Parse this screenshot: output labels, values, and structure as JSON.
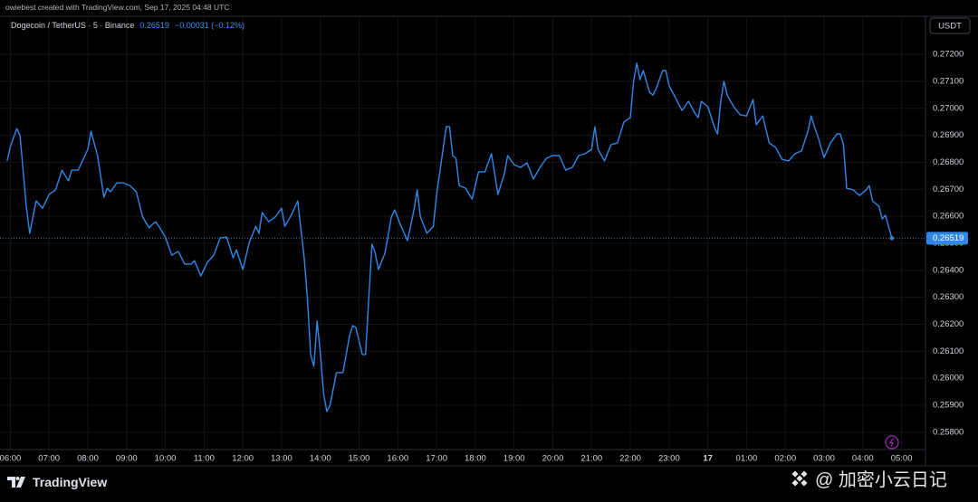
{
  "header": {
    "credit": "owiebest created with TradingView.com, Sep 17, 2025 04:48 UTC"
  },
  "chart_data": {
    "type": "line",
    "symbol": "Dogecoin / TetherUS · 5 · Binance",
    "last_price": 0.26519,
    "change": "−0.00031 (−0.12%)",
    "currency": "USDT",
    "color": "#2f88e8",
    "grid": true,
    "x": [
      355,
      360,
      370,
      375,
      385,
      390,
      400,
      410,
      420,
      430,
      440,
      450,
      455,
      465,
      480,
      485,
      495,
      505,
      510,
      515,
      525,
      535,
      545,
      555,
      565,
      575,
      580,
      585,
      590,
      600,
      610,
      620,
      630,
      640,
      645,
      655,
      665,
      675,
      685,
      695,
      705,
      710,
      720,
      730,
      740,
      745,
      750,
      760,
      770,
      780,
      785,
      795,
      805,
      815,
      820,
      825,
      830,
      835,
      840,
      845,
      850,
      855,
      865,
      875,
      885,
      890,
      895,
      905,
      910,
      915,
      920,
      925,
      930,
      940,
      950,
      955,
      965,
      975,
      985,
      990,
      995,
      1005,
      1015,
      1020,
      1030,
      1035,
      1040,
      1045,
      1050,
      1055,
      1065,
      1075,
      1085,
      1095,
      1105,
      1115,
      1125,
      1130,
      1140,
      1150,
      1160,
      1170,
      1180,
      1190,
      1200,
      1210,
      1220,
      1230,
      1240,
      1250,
      1260,
      1265,
      1270,
      1280,
      1290,
      1300,
      1310,
      1320,
      1325,
      1330,
      1335,
      1340,
      1350,
      1355,
      1360,
      1370,
      1375,
      1380,
      1390,
      1400,
      1410,
      1420,
      1425,
      1430,
      1440,
      1450,
      1455,
      1460,
      1465,
      1470,
      1480,
      1490,
      1500,
      1510,
      1515,
      1525,
      1535,
      1545,
      1555,
      1565,
      1575,
      1585,
      1595,
      1600,
      1605,
      1610,
      1620,
      1630,
      1640,
      1645,
      1650,
      1655,
      1665,
      1675,
      1685,
      1690,
      1695,
      1705,
      1710,
      1715,
      1725
    ],
    "values": [
      0.26805,
      0.26858,
      0.26925,
      0.26899,
      0.2663,
      0.26537,
      0.26657,
      0.2663,
      0.26681,
      0.26698,
      0.26771,
      0.26731,
      0.26771,
      0.26771,
      0.26848,
      0.26915,
      0.26825,
      0.26671,
      0.26704,
      0.26691,
      0.26724,
      0.26724,
      0.26714,
      0.26691,
      0.26597,
      0.26557,
      0.2657,
      0.2658,
      0.26563,
      0.26523,
      0.26456,
      0.2647,
      0.26423,
      0.26423,
      0.26436,
      0.26379,
      0.26429,
      0.26456,
      0.2652,
      0.26523,
      0.26446,
      0.26476,
      0.26403,
      0.26503,
      0.26563,
      0.26537,
      0.26614,
      0.2658,
      0.26597,
      0.2663,
      0.26563,
      0.26604,
      0.26657,
      0.26446,
      0.26296,
      0.26088,
      0.26044,
      0.26212,
      0.26094,
      0.25944,
      0.25877,
      0.259,
      0.26021,
      0.26021,
      0.26155,
      0.26195,
      0.26188,
      0.26088,
      0.26088,
      0.26296,
      0.26497,
      0.26463,
      0.26403,
      0.26463,
      0.26597,
      0.26624,
      0.26563,
      0.2651,
      0.26624,
      0.26698,
      0.26597,
      0.26537,
      0.26563,
      0.26681,
      0.26848,
      0.26932,
      0.26932,
      0.26825,
      0.26815,
      0.26714,
      0.26704,
      0.26664,
      0.26765,
      0.26765,
      0.26832,
      0.26681,
      0.26758,
      0.26825,
      0.26791,
      0.26781,
      0.26798,
      0.26738,
      0.26781,
      0.26815,
      0.26825,
      0.26825,
      0.26771,
      0.26781,
      0.26825,
      0.26832,
      0.26848,
      0.26932,
      0.26848,
      0.26805,
      0.26865,
      0.26872,
      0.26949,
      0.26966,
      0.271,
      0.27167,
      0.27106,
      0.2714,
      0.27059,
      0.27049,
      0.27073,
      0.2714,
      0.2714,
      0.27083,
      0.27039,
      0.26992,
      0.27026,
      0.26982,
      0.26966,
      0.27026,
      0.27006,
      0.26932,
      0.26905,
      0.27026,
      0.271,
      0.27049,
      0.27006,
      0.26976,
      0.26972,
      0.27033,
      0.26939,
      0.26972,
      0.26872,
      0.26855,
      0.26811,
      0.26805,
      0.26832,
      0.26842,
      0.26915,
      0.26972,
      0.26932,
      0.26899,
      0.26818,
      0.26872,
      0.26905,
      0.26905,
      0.26865,
      0.26704,
      0.26698,
      0.26677,
      0.26698,
      0.26714,
      0.26657,
      0.26637,
      0.2659,
      0.26604,
      0.26519
    ],
    "xlim": [
      344,
      1777
    ],
    "xticks": [
      {
        "value": 360,
        "label": "06:00"
      },
      {
        "value": 420,
        "label": "07:00"
      },
      {
        "value": 480,
        "label": "08:00"
      },
      {
        "value": 540,
        "label": "09:00"
      },
      {
        "value": 600,
        "label": "10:00"
      },
      {
        "value": 660,
        "label": "11:00"
      },
      {
        "value": 720,
        "label": "12:00"
      },
      {
        "value": 780,
        "label": "13:00"
      },
      {
        "value": 840,
        "label": "14:00"
      },
      {
        "value": 900,
        "label": "15:00"
      },
      {
        "value": 960,
        "label": "16:00"
      },
      {
        "value": 1020,
        "label": "17:00"
      },
      {
        "value": 1080,
        "label": "18:00"
      },
      {
        "value": 1140,
        "label": "19:00"
      },
      {
        "value": 1200,
        "label": "20:00"
      },
      {
        "value": 1260,
        "label": "21:00"
      },
      {
        "value": 1320,
        "label": "22:00"
      },
      {
        "value": 1380,
        "label": "23:00"
      },
      {
        "value": 1440,
        "label": "17"
      },
      {
        "value": 1500,
        "label": "01:00"
      },
      {
        "value": 1560,
        "label": "02:00"
      },
      {
        "value": 1620,
        "label": "03:00"
      },
      {
        "value": 1680,
        "label": "04:00"
      },
      {
        "value": 1740,
        "label": "05:00"
      }
    ],
    "ylim": [
      0.25736,
      0.27341
    ],
    "yticks": [
      {
        "value": 0.258,
        "label": "0.25800"
      },
      {
        "value": 0.259,
        "label": "0.25900"
      },
      {
        "value": 0.26,
        "label": "0.26000"
      },
      {
        "value": 0.261,
        "label": "0.26100"
      },
      {
        "value": 0.262,
        "label": "0.26200"
      },
      {
        "value": 0.263,
        "label": "0.26300"
      },
      {
        "value": 0.264,
        "label": "0.26400"
      },
      {
        "value": 0.265,
        "label": "0.26500"
      },
      {
        "value": 0.266,
        "label": "0.26600"
      },
      {
        "value": 0.267,
        "label": "0.26700"
      },
      {
        "value": 0.268,
        "label": "0.26800"
      },
      {
        "value": 0.269,
        "label": "0.26900"
      },
      {
        "value": 0.27,
        "label": "0.27000"
      },
      {
        "value": 0.271,
        "label": "0.27100"
      },
      {
        "value": 0.272,
        "label": "0.27200"
      }
    ]
  },
  "footer": {
    "brand": "TradingView",
    "watermark": "@ 加密小云日记"
  }
}
